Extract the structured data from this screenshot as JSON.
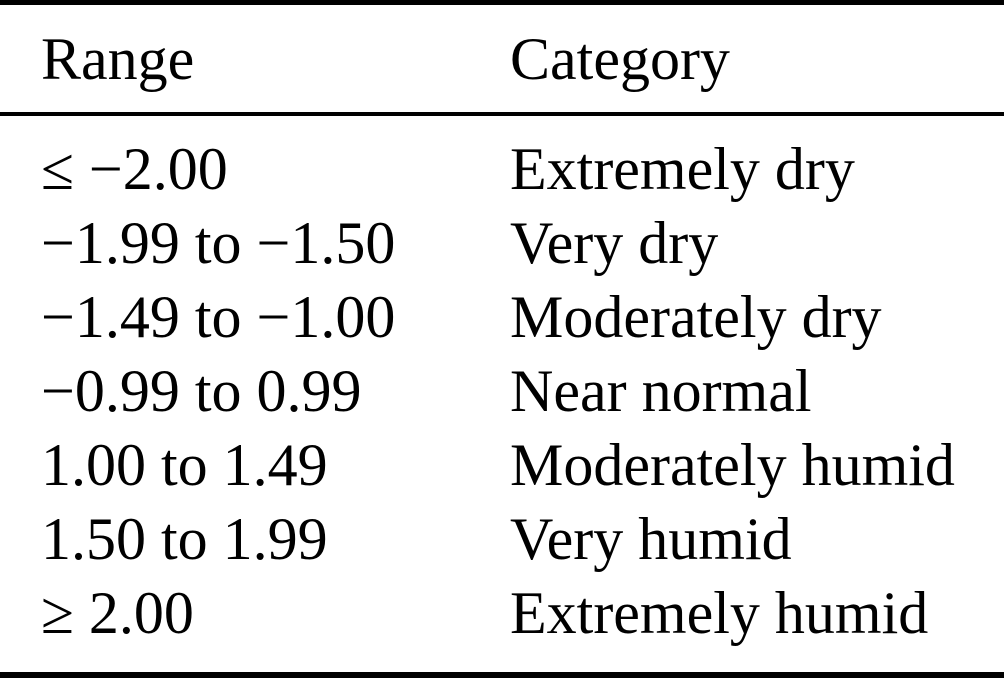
{
  "table": {
    "columns": [
      {
        "label": "Range"
      },
      {
        "label": "Category"
      }
    ],
    "rows": [
      {
        "range": "≤ −2.00",
        "category": "Extremely dry"
      },
      {
        "range": "−1.99 to −1.50",
        "category": "Very dry"
      },
      {
        "range": "−1.49 to −1.00",
        "category": "Moderately dry"
      },
      {
        "range": "−0.99 to 0.99",
        "category": "Near normal"
      },
      {
        "range": "1.00 to 1.49",
        "category": "Moderately humid"
      },
      {
        "range": "1.50 to 1.99",
        "category": "Very humid"
      },
      {
        "range": "≥ 2.00",
        "category": "Extremely humid"
      }
    ],
    "colors": {
      "text": "#000000",
      "background": "#ffffff",
      "rule": "#000000"
    }
  }
}
